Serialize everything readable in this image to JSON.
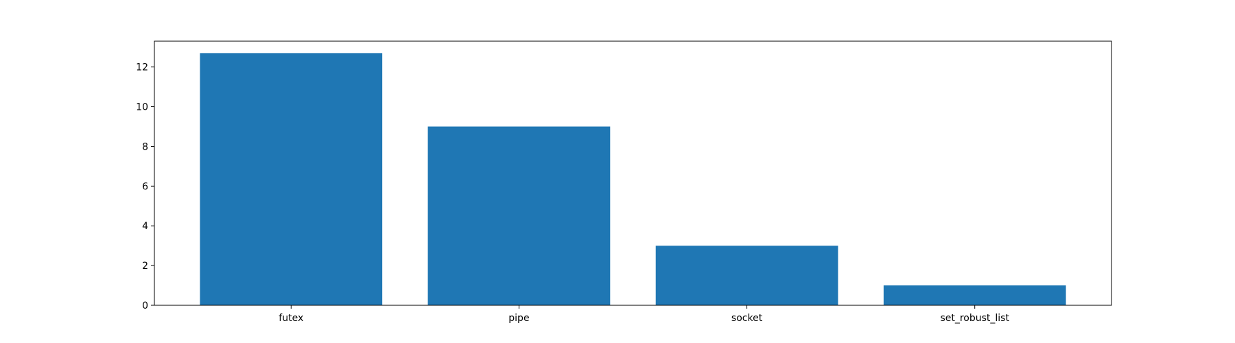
{
  "chart_data": {
    "type": "bar",
    "categories": [
      "futex",
      "pipe",
      "socket",
      "set_robust_list"
    ],
    "values": [
      12.7,
      9.0,
      3.0,
      1.0
    ],
    "ylim": [
      0,
      13.3
    ],
    "yticks": [
      0,
      2,
      4,
      6,
      8,
      10,
      12
    ],
    "ytick_labels": [
      "0",
      "2",
      "4",
      "6",
      "8",
      "10",
      "12"
    ],
    "grid": false,
    "legend": "none",
    "bar_color": "#1f77b4",
    "axis_color": "#000000"
  }
}
